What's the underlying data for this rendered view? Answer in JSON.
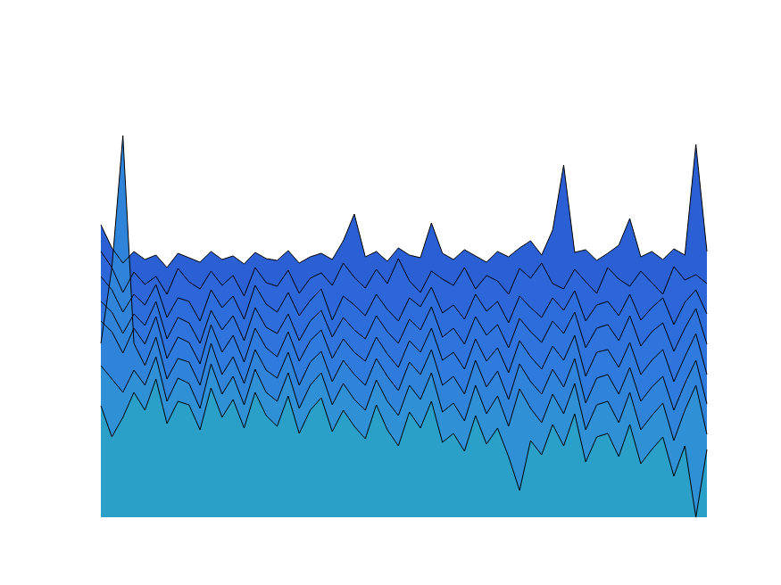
{
  "chart_data": {
    "type": "area",
    "tick_labels": false,
    "grid": false,
    "x": [
      1,
      2,
      3,
      4,
      5,
      6,
      7,
      8,
      9,
      10,
      11,
      12,
      13,
      14,
      15,
      16,
      17,
      18,
      19,
      20,
      21,
      22,
      23,
      24,
      25,
      26,
      27,
      28,
      29,
      30,
      31,
      32,
      33,
      34,
      35,
      36,
      37,
      38,
      39,
      40,
      41,
      42,
      43,
      44,
      45,
      46,
      47,
      48,
      49,
      50,
      51,
      52,
      53,
      54,
      55,
      56
    ],
    "series": [
      {
        "color": "#2b5fd4",
        "values": [
          348,
          322,
          305,
          318,
          309,
          314,
          300,
          316,
          311,
          306,
          318,
          309,
          313,
          304,
          317,
          310,
          308,
          319,
          305,
          312,
          316,
          309,
          330,
          360,
          312,
          318,
          307,
          322,
          314,
          311,
          350,
          316,
          309,
          320,
          313,
          306,
          318,
          312,
          322,
          330,
          314,
          342,
          415,
          317,
          320,
          308,
          316,
          325,
          355,
          312,
          318,
          309,
          321,
          314,
          438,
          318
        ]
      },
      {
        "color": "#2c66d8",
        "values": [
          318,
          300,
          272,
          295,
          281,
          290,
          270,
          299,
          284,
          276,
          296,
          280,
          291,
          268,
          300,
          283,
          279,
          297,
          271,
          288,
          294,
          280,
          305,
          289,
          277,
          298,
          282,
          310,
          285,
          272,
          296,
          287,
          280,
          300,
          276,
          291,
          285,
          270,
          299,
          288,
          305,
          282,
          276,
          298,
          284,
          271,
          300,
          287,
          279,
          296,
          283,
          270,
          301,
          286,
          292,
          282
        ]
      },
      {
        "color": "#2d6ddb",
        "values": [
          290,
          275,
          250,
          270,
          258,
          281,
          244,
          266,
          262,
          240,
          275,
          255,
          268,
          242,
          280,
          259,
          250,
          272,
          246,
          263,
          276,
          241,
          268,
          258,
          246,
          270,
          253,
          240,
          266,
          256,
          278,
          249,
          258,
          242,
          270,
          251,
          262,
          238,
          268,
          255,
          244,
          266,
          252,
          274,
          240,
          258,
          262,
          246,
          270,
          241,
          255,
          266,
          236,
          261,
          275,
          248
        ]
      },
      {
        "color": "#2e74dc",
        "values": [
          262,
          250,
          226,
          248,
          235,
          262,
          220,
          244,
          238,
          215,
          252,
          230,
          246,
          218,
          255,
          233,
          226,
          248,
          218,
          240,
          252,
          222,
          244,
          230,
          220,
          246,
          228,
          215,
          242,
          230,
          256,
          222,
          232,
          214,
          245,
          224,
          236,
          210,
          243,
          228,
          216,
          240,
          226,
          250,
          210,
          232,
          236,
          218,
          246,
          212,
          228,
          238,
          206,
          232,
          254,
          214
        ]
      },
      {
        "color": "#2f7bdd",
        "values": [
          240,
          228,
          204,
          232,
          214,
          245,
          198,
          222,
          216,
          192,
          236,
          205,
          224,
          194,
          232,
          210,
          200,
          228,
          195,
          218,
          230,
          198,
          220,
          205,
          195,
          222,
          203,
          188,
          218,
          205,
          232,
          196,
          205,
          186,
          220,
          195,
          210,
          182,
          218,
          200,
          186,
          212,
          196,
          224,
          178,
          205,
          208,
          188,
          216,
          180,
          196,
          208,
          172,
          200,
          226,
          180
        ]
      },
      {
        "color": "#2f84d9",
        "values": [
          215,
          300,
          448,
          215,
          190,
          222,
          175,
          198,
          194,
          168,
          215,
          180,
          200,
          170,
          208,
          185,
          176,
          205,
          168,
          194,
          206,
          172,
          196,
          180,
          168,
          198,
          178,
          162,
          194,
          180,
          208,
          168,
          178,
          158,
          196,
          166,
          184,
          152,
          192,
          172,
          158,
          186,
          166,
          198,
          148,
          176,
          180,
          158,
          188,
          150,
          166,
          178,
          140,
          170,
          196,
          147
        ]
      },
      {
        "color": "#2f90d5",
        "values": [
          190,
          175,
          160,
          185,
          168,
          200,
          150,
          176,
          170,
          142,
          192,
          158,
          178,
          146,
          186,
          160,
          150,
          182,
          142,
          168,
          182,
          146,
          170,
          152,
          140,
          174,
          150,
          134,
          168,
          152,
          182,
          138,
          148,
          128,
          168,
          136,
          156,
          122,
          164,
          142,
          126,
          158,
          136,
          170,
          118,
          146,
          150,
          126,
          160,
          118,
          134,
          148,
          106,
          140,
          168,
          113
        ]
      },
      {
        "color": "#2a9fc8",
        "values": [
          145,
          110,
          132,
          160,
          140,
          175,
          125,
          150,
          146,
          118,
          165,
          132,
          152,
          120,
          160,
          134,
          122,
          156,
          114,
          140,
          154,
          116,
          140,
          122,
          108,
          146,
          118,
          100,
          138,
          120,
          150,
          104,
          114,
          94,
          134,
          102,
          120,
          88,
          50,
          106,
          90,
          124,
          100,
          136,
          82,
          110,
          114,
          88,
          124,
          80,
          96,
          110,
          66,
          100,
          20,
          96
        ]
      }
    ]
  }
}
